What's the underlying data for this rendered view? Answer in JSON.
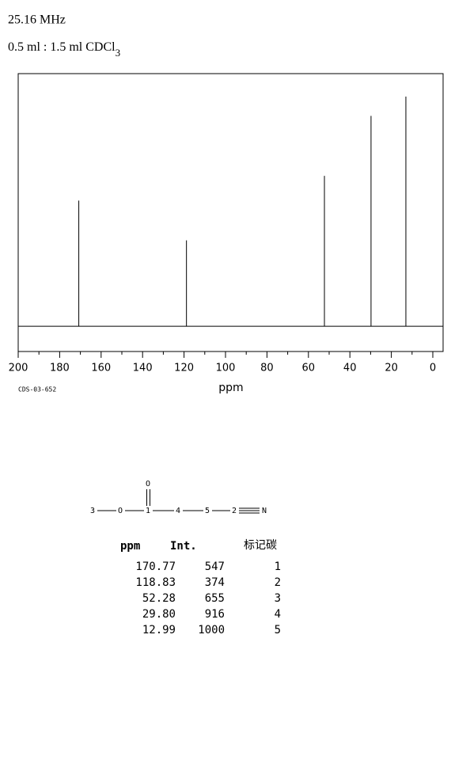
{
  "header": {
    "frequency": "25.16 MHz",
    "solvent": "0.5 ml : 1.5 ml CDCl",
    "solvent_subscript": "3"
  },
  "chart_data": {
    "type": "spectrum",
    "x": [
      170.77,
      118.83,
      52.28,
      29.8,
      12.99
    ],
    "values": [
      547,
      374,
      655,
      916,
      1000
    ],
    "xlim": [
      200,
      0
    ],
    "xticks": [
      200,
      180,
      160,
      140,
      120,
      100,
      80,
      60,
      40,
      20,
      0
    ],
    "ylim": [
      -110,
      1100
    ],
    "xlabel": "ppm",
    "code": "CDS-03-652",
    "color": "#000000"
  },
  "structure": {
    "atoms": [
      "3",
      "O",
      "1",
      "4",
      "5",
      "2",
      "N",
      "O"
    ]
  },
  "table": {
    "columns": [
      "ppm",
      "Int.",
      "标记碳"
    ],
    "rows": [
      [
        "170.77",
        "547",
        "1"
      ],
      [
        "118.83",
        "374",
        "2"
      ],
      [
        "52.28",
        "655",
        "3"
      ],
      [
        "29.80",
        "916",
        "4"
      ],
      [
        "12.99",
        "1000",
        "5"
      ]
    ]
  }
}
